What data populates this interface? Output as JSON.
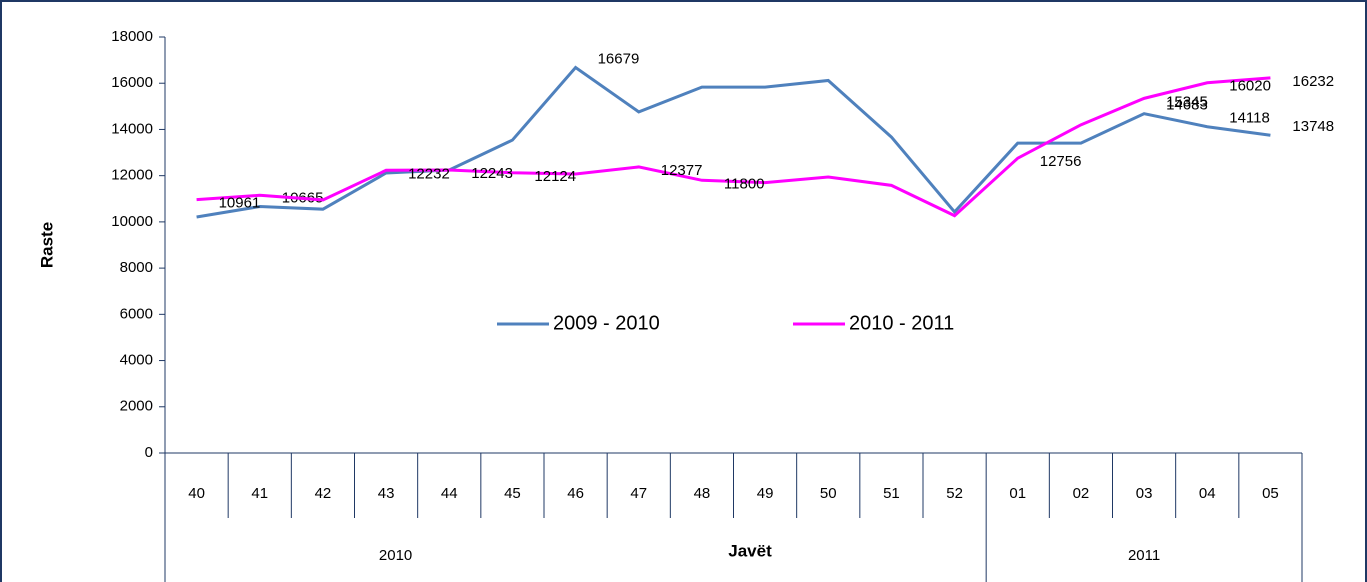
{
  "chart_data": {
    "type": "line",
    "x_label": "Javët",
    "y_label": "Raste",
    "categories": [
      "40",
      "41",
      "42",
      "43",
      "44",
      "45",
      "46",
      "47",
      "48",
      "49",
      "50",
      "51",
      "52",
      "01",
      "02",
      "03",
      "04",
      "05"
    ],
    "groups": [
      {
        "label": "2010",
        "span": 13
      },
      {
        "label": "2011",
        "span": 5
      }
    ],
    "series": [
      {
        "name": "2009 - 2010",
        "color": "#4f81bd",
        "values": [
          10210,
          10665,
          10550,
          12115,
          12245,
          13540,
          16679,
          14760,
          15830,
          15830,
          16120,
          13670,
          10430,
          13410,
          13410,
          14683,
          14118,
          13748
        ],
        "value_labels": [
          null,
          "10665",
          null,
          null,
          null,
          null,
          "16679",
          null,
          null,
          null,
          null,
          null,
          null,
          null,
          null,
          "14683",
          "14118",
          "13748"
        ]
      },
      {
        "name": "2010 - 2011",
        "color": "#ff00ff",
        "values": [
          10961,
          11150,
          10950,
          12232,
          12243,
          12124,
          12070,
          12377,
          11800,
          11700,
          11940,
          11580,
          10270,
          12756,
          14200,
          15345,
          16020,
          16232
        ],
        "value_labels": [
          "10961",
          null,
          null,
          "12232",
          "12243",
          "12124",
          null,
          "12377",
          "11800",
          null,
          null,
          null,
          null,
          "12756",
          null,
          "15345",
          "16020",
          "16232"
        ]
      }
    ],
    "ylim": [
      0,
      18000
    ],
    "yticks": [
      0,
      2000,
      4000,
      6000,
      8000,
      10000,
      12000,
      14000,
      16000,
      18000
    ],
    "legend": "center"
  }
}
